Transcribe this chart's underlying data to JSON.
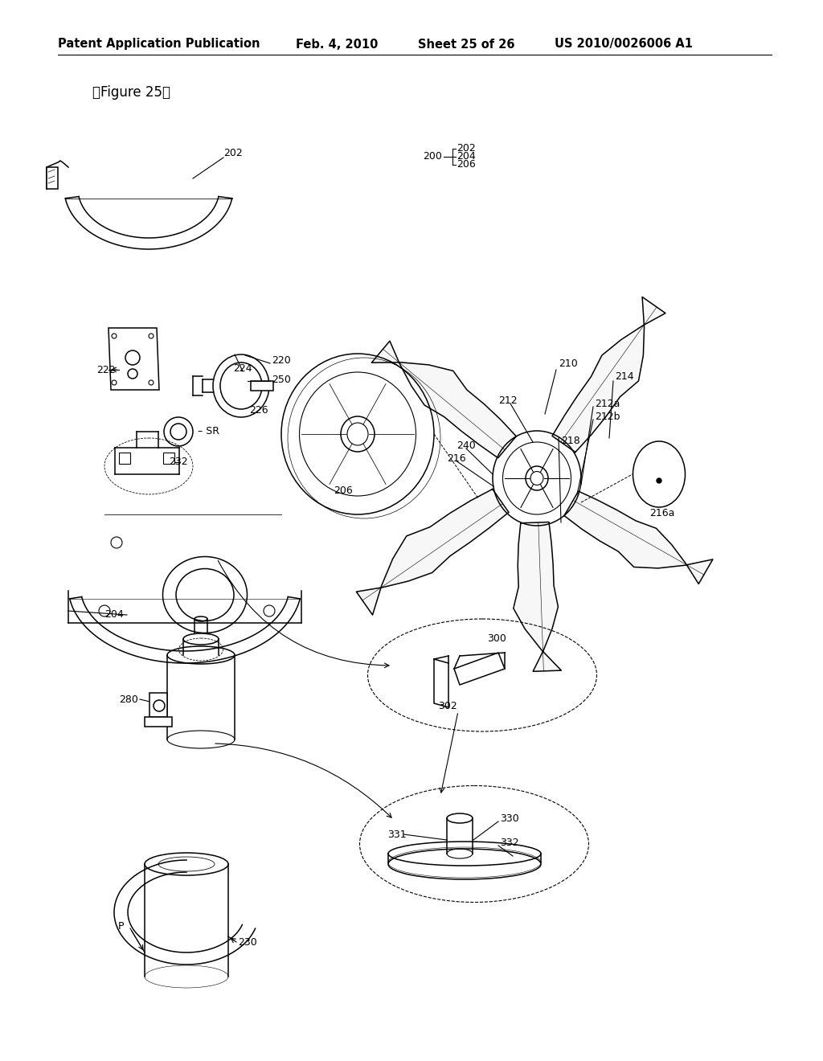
{
  "title": "Patent Application Publication",
  "date": "Feb. 4, 2010",
  "sheet": "Sheet 25 of 26",
  "patent_num": "US 2010/0026006 A1",
  "figure_label": "『Figure 25』",
  "background_color": "#ffffff",
  "header_font_size": 10.5,
  "figure_label_font_size": 12,
  "label_font_size": 9
}
